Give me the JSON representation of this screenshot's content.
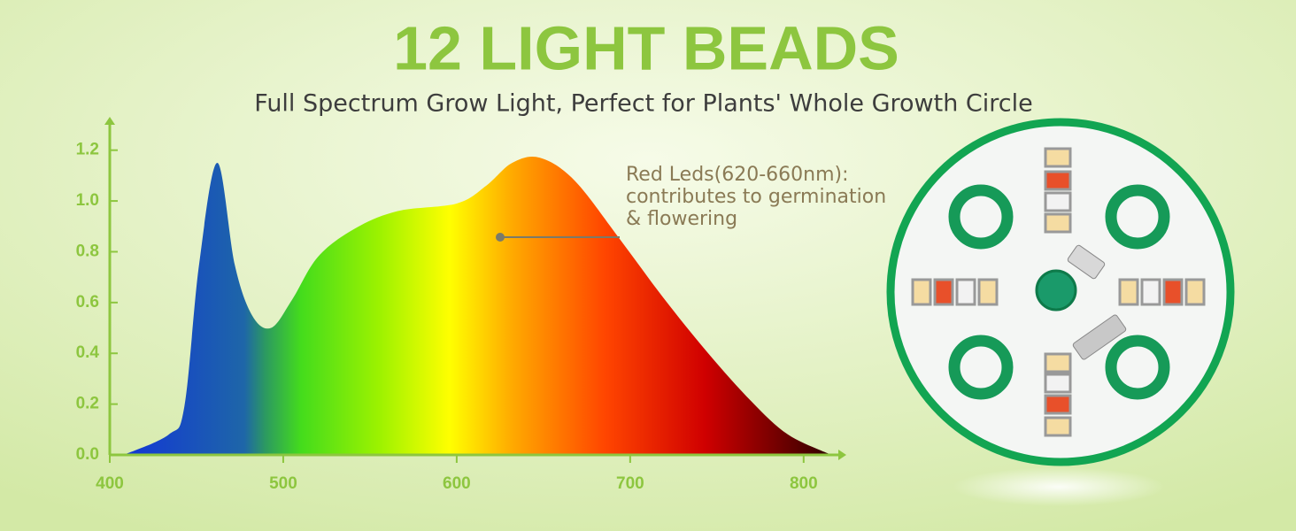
{
  "chart_data": {
    "type": "area",
    "title": "12 LIGHT BEADS",
    "subtitle": "Full Spectrum Grow Light, Perfect for Plants' Whole Growth Circle",
    "annotation": [
      "Red Leds(620-660nm):",
      "contributes to germination",
      "& flowering"
    ],
    "x": [
      408,
      434,
      443,
      451.5,
      462,
      472,
      482,
      493,
      505,
      520,
      541,
      566,
      600,
      617,
      632,
      648,
      668,
      694,
      719,
      745,
      770,
      791,
      816
    ],
    "values": [
      0,
      0.08,
      0.19,
      0.75,
      1.15,
      0.75,
      0.55,
      0.5,
      0.61,
      0.78,
      0.89,
      0.96,
      0.99,
      1.06,
      1.15,
      1.17,
      1.08,
      0.85,
      0.62,
      0.4,
      0.21,
      0.08,
      0
    ],
    "xlim": [
      400,
      820
    ],
    "ylim": [
      0,
      1.3
    ],
    "xticks": [
      400,
      500,
      600,
      700,
      800
    ],
    "yticks": [
      {
        "value": 0,
        "label": "0.0"
      },
      0.2,
      0.4,
      0.6,
      0.8,
      {
        "value": 1,
        "label": "1.0"
      },
      1.2
    ],
    "axis_color": "#8dc63f"
  }
}
